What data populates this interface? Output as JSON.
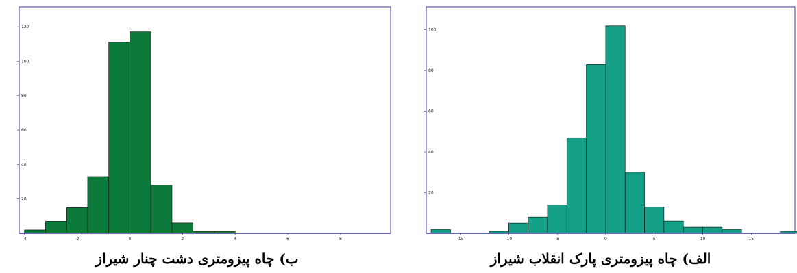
{
  "chart_data": [
    {
      "type": "bar",
      "caption": "ب) چاه پیزومتری دشت چنار شیراز",
      "color": "#0b7a3b",
      "frame_color": "#3b3b9b",
      "bin_edges": [
        -4,
        -3.2,
        -2.4,
        -1.6,
        -0.8,
        0,
        0.8,
        1.6,
        2.4,
        3.2,
        4.0
      ],
      "values": [
        2,
        7,
        15,
        33,
        111,
        117,
        28,
        6,
        1,
        1
      ],
      "xlim": [
        -4.2,
        9.9
      ],
      "ylim": [
        0,
        130
      ],
      "xticks": [
        {
          "v": -4,
          "label": "-4"
        },
        {
          "v": -2,
          "label": "-2"
        },
        {
          "v": 0,
          "label": "0"
        },
        {
          "v": 2,
          "label": "2"
        },
        {
          "v": 4,
          "label": "4"
        },
        {
          "v": 6,
          "label": "6"
        },
        {
          "v": 8,
          "label": "8"
        }
      ],
      "yticks": [
        {
          "v": 20,
          "label": "20"
        },
        {
          "v": 40,
          "label": "40"
        },
        {
          "v": 60,
          "label": "60"
        },
        {
          "v": 80,
          "label": "80"
        },
        {
          "v": 100,
          "label": "100"
        },
        {
          "v": 120,
          "label": "120"
        }
      ],
      "grid": false
    },
    {
      "type": "bar",
      "caption": "الف) چاه پیزومتری پارک انقلاب شیراز",
      "color": "#13a087",
      "frame_color": "#3b3b9b",
      "bin_edges": [
        -18,
        -16,
        -14,
        -12,
        -10,
        -8,
        -6,
        -4,
        -2,
        0,
        2,
        4,
        6,
        8,
        10,
        12,
        14,
        16,
        18,
        20
      ],
      "values": [
        2,
        0,
        0,
        1,
        5,
        8,
        14,
        47,
        83,
        102,
        30,
        13,
        6,
        3,
        3,
        2,
        0,
        0,
        1
      ],
      "xlim": [
        -18.5,
        19.5
      ],
      "ylim": [
        0,
        110
      ],
      "xticks": [
        {
          "v": -15,
          "label": "-15"
        },
        {
          "v": -10,
          "label": "-10"
        },
        {
          "v": -5,
          "label": "-5"
        },
        {
          "v": 0,
          "label": "0"
        },
        {
          "v": 5,
          "label": "5"
        },
        {
          "v": 10,
          "label": "10"
        },
        {
          "v": 15,
          "label": "15"
        }
      ],
      "yticks": [
        {
          "v": 20,
          "label": "20"
        },
        {
          "v": 40,
          "label": "40"
        },
        {
          "v": 60,
          "label": "60"
        },
        {
          "v": 80,
          "label": "80"
        },
        {
          "v": 100,
          "label": "100"
        }
      ],
      "grid": false
    }
  ]
}
